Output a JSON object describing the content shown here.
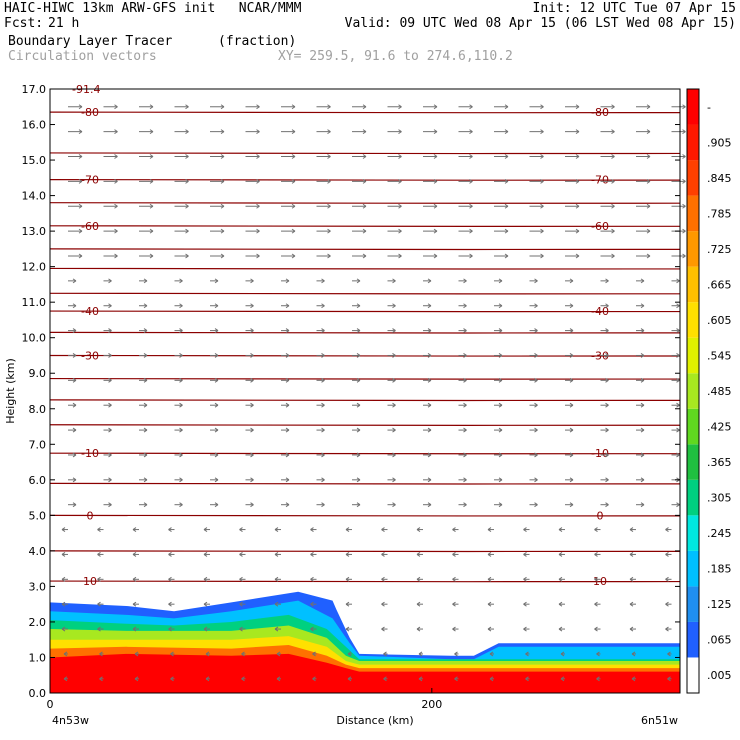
{
  "header": {
    "title_left": "HAIC-HIWC 13km ARW-GFS init   NCAR/MMM",
    "init": "Init: 12 UTC Tue 07 Apr 15",
    "fcst_label": "Fcst:",
    "fcst_value": "21 h",
    "valid": "Valid: 09 UTC Wed 08 Apr 15 (06 LST Wed 08 Apr 15)",
    "field_name": "Boundary Layer Tracer",
    "field_units": "(fraction)",
    "vector_label": "Circulation vectors",
    "xy_label": "XY= 259.5, 91.6 to 274.6,110.2"
  },
  "chart_data": {
    "type": "heatmap",
    "ylabel": "Height (km)",
    "xlabel": "Distance (km)",
    "ylim": [
      0,
      17
    ],
    "yticks": [
      "0.0",
      "1.0",
      "2.0",
      "3.0",
      "4.0",
      "5.0",
      "6.0",
      "7.0",
      "8.0",
      "9.0",
      "10.0",
      "11.0",
      "12.0",
      "13.0",
      "14.0",
      "15.0",
      "16.0",
      "17.0"
    ],
    "x_ticks": [
      {
        "value": 0,
        "label": "0"
      },
      {
        "value": 200,
        "label": "200"
      }
    ],
    "x_end_labels": {
      "left": "4n53w",
      "right": "6n51w"
    },
    "xlim": [
      0,
      330
    ],
    "colorbar": {
      "labels": [
        ".005",
        ".065",
        ".125",
        ".185",
        ".245",
        ".305",
        ".365",
        ".425",
        ".485",
        ".545",
        ".605",
        ".665",
        ".725",
        ".785",
        ".845",
        ".905",
        "-"
      ],
      "colors": [
        "#ffffff",
        "#2060ff",
        "#1f8ff0",
        "#00c0ff",
        "#00e8e0",
        "#00d080",
        "#20c040",
        "#60d820",
        "#a8e820",
        "#e0f000",
        "#ffe000",
        "#ffc000",
        "#ff9800",
        "#ff7000",
        "#ff4000",
        "#ff1800",
        "#ff0000"
      ]
    },
    "tracer_layers": [
      {
        "threshold": 0.005,
        "color": "#2060ff",
        "top_km": [
          [
            0,
            2.55
          ],
          [
            40,
            2.45
          ],
          [
            65,
            2.3
          ],
          [
            95,
            2.55
          ],
          [
            130,
            2.85
          ],
          [
            148,
            2.6
          ],
          [
            150,
            2.35
          ],
          [
            157,
            1.55
          ],
          [
            162,
            1.1
          ],
          [
            210,
            1.05
          ],
          [
            222,
            1.05
          ],
          [
            235,
            1.4
          ],
          [
            330,
            1.4
          ]
        ]
      },
      {
        "threshold": 0.125,
        "color": "#00c0ff",
        "top_km": [
          [
            0,
            2.3
          ],
          [
            40,
            2.2
          ],
          [
            65,
            2.1
          ],
          [
            95,
            2.3
          ],
          [
            130,
            2.6
          ],
          [
            148,
            2.1
          ],
          [
            157,
            1.4
          ],
          [
            162,
            1.05
          ],
          [
            210,
            0.95
          ],
          [
            222,
            0.95
          ],
          [
            235,
            1.3
          ],
          [
            330,
            1.3
          ]
        ]
      },
      {
        "threshold": 0.245,
        "color": "#00d080",
        "top_km": [
          [
            0,
            2.05
          ],
          [
            40,
            1.95
          ],
          [
            65,
            1.9
          ],
          [
            95,
            2.0
          ],
          [
            125,
            2.2
          ],
          [
            145,
            1.8
          ],
          [
            157,
            1.2
          ],
          [
            162,
            0.95
          ],
          [
            330,
            0.95
          ]
        ]
      },
      {
        "threshold": 0.425,
        "color": "#a8e820",
        "top_km": [
          [
            0,
            1.8
          ],
          [
            40,
            1.75
          ],
          [
            95,
            1.75
          ],
          [
            125,
            1.9
          ],
          [
            145,
            1.55
          ],
          [
            155,
            1.05
          ],
          [
            162,
            0.9
          ],
          [
            330,
            0.9
          ]
        ]
      },
      {
        "threshold": 0.605,
        "color": "#ffe000",
        "top_km": [
          [
            0,
            1.5
          ],
          [
            40,
            1.5
          ],
          [
            95,
            1.5
          ],
          [
            125,
            1.6
          ],
          [
            145,
            1.3
          ],
          [
            155,
            0.9
          ],
          [
            162,
            0.8
          ],
          [
            330,
            0.8
          ]
        ]
      },
      {
        "threshold": 0.785,
        "color": "#ff7000",
        "top_km": [
          [
            0,
            1.25
          ],
          [
            40,
            1.3
          ],
          [
            95,
            1.25
          ],
          [
            125,
            1.35
          ],
          [
            145,
            1.05
          ],
          [
            155,
            0.8
          ],
          [
            162,
            0.7
          ],
          [
            330,
            0.7
          ]
        ]
      },
      {
        "threshold": 0.905,
        "color": "#ff0000",
        "top_km": [
          [
            0,
            1.0
          ],
          [
            40,
            1.1
          ],
          [
            95,
            1.05
          ],
          [
            125,
            1.1
          ],
          [
            145,
            0.85
          ],
          [
            155,
            0.7
          ],
          [
            162,
            0.6
          ],
          [
            330,
            0.6
          ]
        ]
      }
    ],
    "isotherms": [
      {
        "label": "-80",
        "km": 16.35
      },
      {
        "label": "",
        "km": 15.2
      },
      {
        "label": "-70",
        "km": 14.45
      },
      {
        "label": "",
        "km": 13.8
      },
      {
        "label": "-60",
        "km": 13.15
      },
      {
        "label": "",
        "km": 12.5
      },
      {
        "label": "",
        "km": 11.95
      },
      {
        "label": "",
        "km": 11.25
      },
      {
        "label": "-40",
        "km": 10.75
      },
      {
        "label": "",
        "km": 10.15
      },
      {
        "label": "-30",
        "km": 9.5
      },
      {
        "label": "",
        "km": 8.85
      },
      {
        "label": "",
        "km": 8.25
      },
      {
        "label": "",
        "km": 7.55
      },
      {
        "label": "-10",
        "km": 6.75
      },
      {
        "label": "",
        "km": 5.9
      },
      {
        "label": "0",
        "km": 5.0
      },
      {
        "label": "",
        "km": 4.0
      },
      {
        "label": "10",
        "km": 3.15
      }
    ],
    "top_cut_label": "-91.4"
  }
}
